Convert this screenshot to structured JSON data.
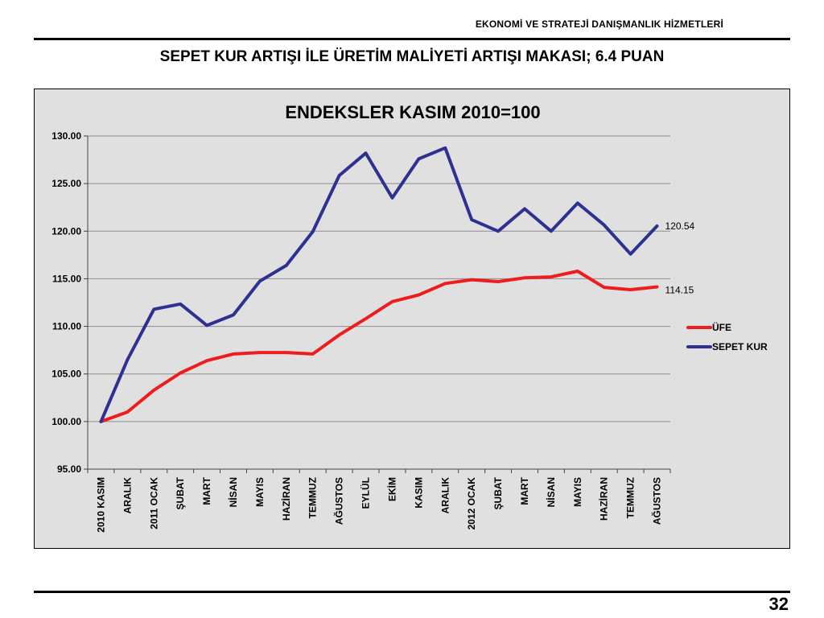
{
  "header": {
    "text": "EKONOMİ VE STRATEJİ DANIŞMANLIK HİZMETLERİ"
  },
  "slide": {
    "title": "SEPET KUR ARTIŞI İLE ÜRETİM MALİYETİ ARTIŞI MAKASI;  6.4 PUAN",
    "page_number": "32"
  },
  "chart_data": {
    "type": "line",
    "title": "ENDEKSLER KASIM 2010=100",
    "xlabel": "",
    "ylabel": "",
    "categories": [
      "2010 KASIM",
      "ARALIK",
      "2011 OCAK",
      "ŞUBAT",
      "MART",
      "NİSAN",
      "MAYIS",
      "HAZİRAN",
      "TEMMUZ",
      "AĞUSTOS",
      "EYLÜL",
      "EKİM",
      "KASIM",
      "ARALIK",
      "2012 OCAK",
      "ŞUBAT",
      "MART",
      "NİSAN",
      "MAYIS",
      "HAZİRAN",
      "TEMMUZ",
      "AĞUSTOS"
    ],
    "ylim": [
      95,
      130
    ],
    "yticks": [
      "95.00",
      "100.00",
      "105.00",
      "110.00",
      "115.00",
      "120.00",
      "125.00",
      "130.00"
    ],
    "grid": true,
    "legend_position": "right",
    "series": [
      {
        "name": "ÜFE",
        "color": "#ee1c1c",
        "values": [
          100.0,
          101.0,
          103.3,
          105.1,
          106.4,
          107.1,
          107.25,
          107.25,
          107.1,
          109.1,
          110.8,
          112.6,
          113.3,
          114.5,
          114.9,
          114.7,
          115.1,
          115.2,
          115.8,
          114.1,
          113.85,
          114.15
        ],
        "end_label": "114.15"
      },
      {
        "name": "SEPET KUR",
        "color": "#2e3192",
        "values": [
          100.0,
          106.5,
          111.8,
          112.35,
          110.1,
          111.2,
          114.75,
          116.4,
          119.95,
          125.85,
          128.2,
          123.5,
          127.6,
          128.75,
          121.2,
          120.0,
          122.35,
          120.0,
          122.95,
          120.65,
          117.6,
          120.54
        ],
        "end_label": "120.54"
      }
    ]
  }
}
